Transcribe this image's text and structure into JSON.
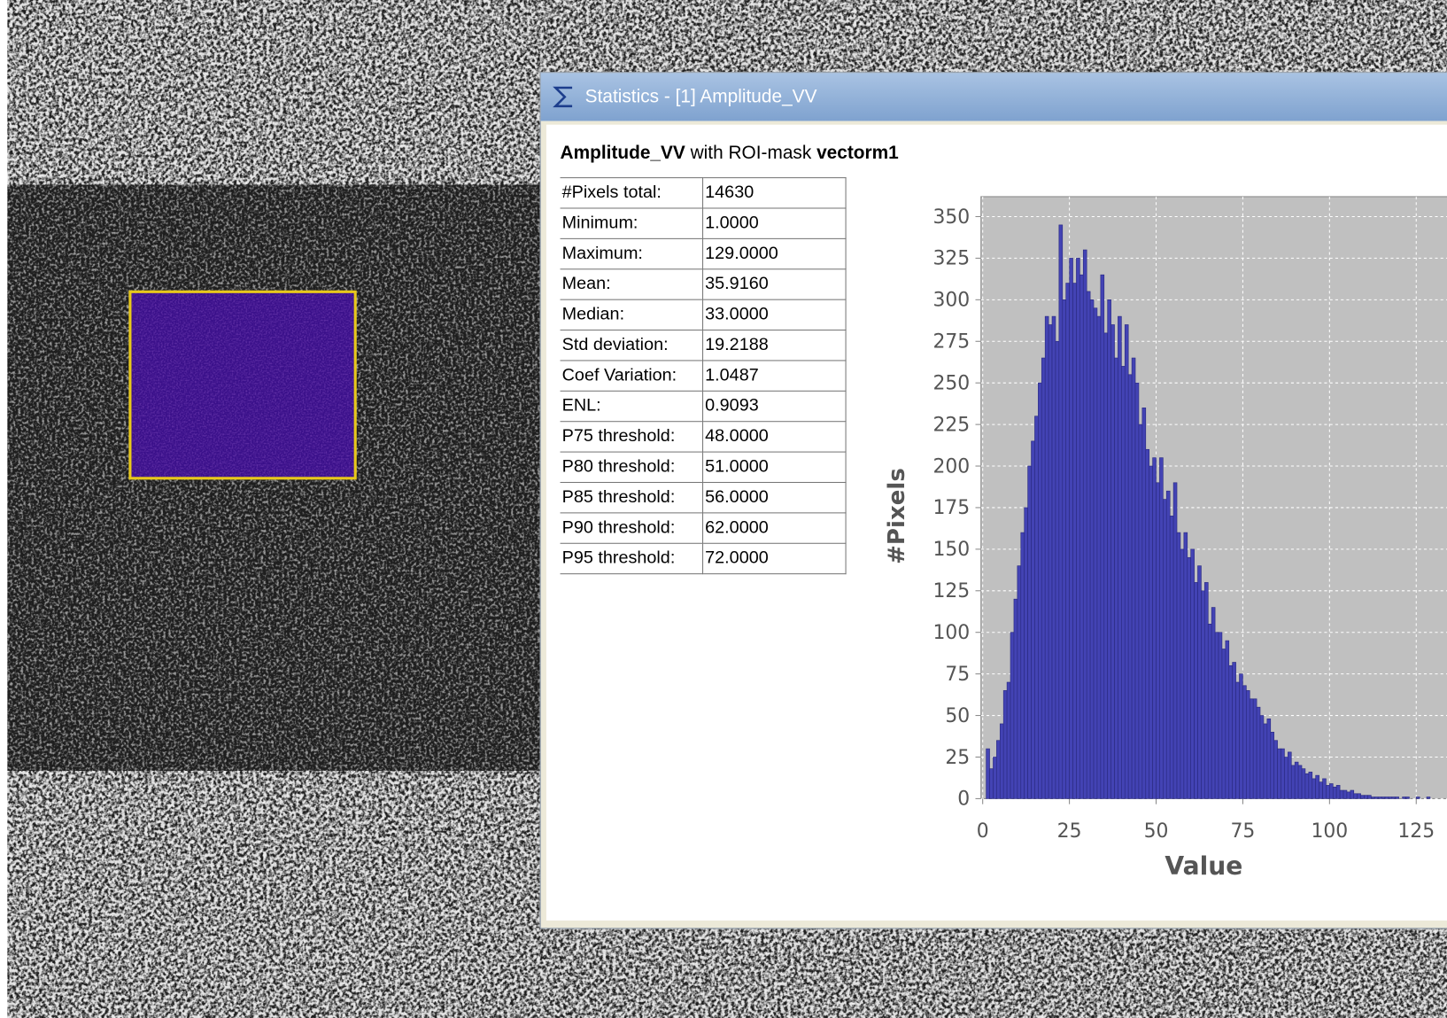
{
  "window": {
    "title": "Statistics - [1] Amplitude_VV"
  },
  "header": {
    "band": "Amplitude_VV",
    "connector": "with ROI-mask",
    "mask": "vectorm1"
  },
  "table": {
    "rows": [
      [
        "#Pixels total:",
        "14630"
      ],
      [
        "Minimum:",
        "1.0000"
      ],
      [
        "Maximum:",
        "129.0000"
      ],
      [
        "Mean:",
        "35.9160"
      ],
      [
        "Median:",
        "33.0000"
      ],
      [
        "Std deviation:",
        "19.2188"
      ],
      [
        "Coef Variation:",
        "1.0487"
      ],
      [
        "ENL:",
        "0.9093"
      ],
      [
        "P75 threshold:",
        "48.0000"
      ],
      [
        "P80 threshold:",
        "51.0000"
      ],
      [
        "P85 threshold:",
        "56.0000"
      ],
      [
        "P90 threshold:",
        "62.0000"
      ],
      [
        "P95 threshold:",
        "72.0000"
      ]
    ]
  },
  "chart_data": {
    "type": "histogram",
    "x_label": "Value",
    "y_label": "#Pixels",
    "bins": [
      1,
      2,
      3,
      4,
      5,
      6,
      7,
      8,
      9,
      10,
      11,
      12,
      13,
      14,
      15,
      16,
      17,
      18,
      19,
      20,
      21,
      22,
      23,
      24,
      25,
      26,
      27,
      28,
      29,
      30,
      31,
      32,
      33,
      34,
      35,
      36,
      37,
      38,
      39,
      40,
      41,
      42,
      43,
      44,
      45,
      46,
      47,
      48,
      49,
      50,
      51,
      52,
      53,
      54,
      55,
      56,
      57,
      58,
      59,
      60,
      61,
      62,
      63,
      64,
      65,
      66,
      67,
      68,
      69,
      70,
      71,
      72,
      73,
      74,
      75,
      76,
      77,
      78,
      79,
      80,
      81,
      82,
      83,
      84,
      85,
      86,
      87,
      88,
      89,
      90,
      91,
      92,
      93,
      94,
      95,
      96,
      97,
      98,
      99,
      100,
      101,
      102,
      103,
      104,
      105,
      106,
      107,
      108,
      109,
      110,
      111,
      112,
      113,
      114,
      115,
      116,
      117,
      118,
      119,
      120,
      121,
      122,
      123,
      124,
      125,
      126,
      127,
      128,
      129
    ],
    "values": [
      30,
      18,
      25,
      35,
      45,
      65,
      70,
      100,
      120,
      140,
      160,
      175,
      200,
      215,
      230,
      250,
      265,
      290,
      285,
      290,
      275,
      345,
      300,
      310,
      325,
      310,
      325,
      315,
      330,
      305,
      300,
      295,
      290,
      315,
      280,
      300,
      285,
      265,
      290,
      260,
      285,
      255,
      265,
      250,
      225,
      235,
      210,
      200,
      205,
      190,
      205,
      180,
      185,
      170,
      190,
      160,
      150,
      160,
      145,
      150,
      130,
      140,
      125,
      130,
      105,
      115,
      100,
      100,
      90,
      95,
      80,
      82,
      70,
      75,
      68,
      65,
      60,
      60,
      55,
      50,
      45,
      48,
      40,
      35,
      30,
      30,
      25,
      28,
      20,
      22,
      20,
      18,
      15,
      16,
      12,
      14,
      10,
      12,
      8,
      9,
      7,
      8,
      5,
      5,
      4,
      5,
      3,
      3,
      2,
      2,
      2,
      1,
      1,
      1,
      1,
      1,
      1,
      1,
      1,
      0,
      1,
      1,
      0,
      0,
      1,
      0,
      0,
      1
    ],
    "color": "#4343b4",
    "xlim": [
      -0.5,
      136
    ],
    "ylim": [
      0,
      362
    ],
    "xticks": [
      0,
      25,
      50,
      75,
      100,
      125
    ],
    "yticks": [
      0,
      25,
      50,
      75,
      100,
      125,
      150,
      175,
      200,
      225,
      250,
      275,
      300,
      325,
      350
    ],
    "grid": true
  }
}
